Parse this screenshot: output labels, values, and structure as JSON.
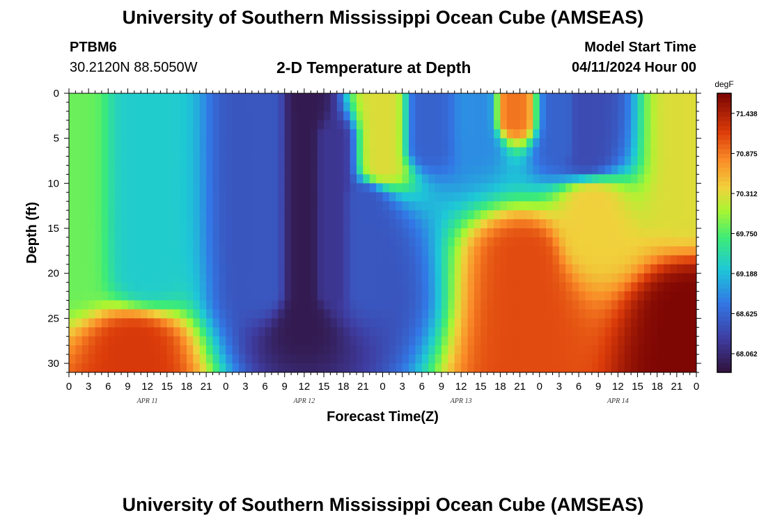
{
  "page": {
    "title_top": "University of Southern Mississippi Ocean Cube (AMSEAS)",
    "title_bottom": "University of Southern Mississippi Ocean Cube (AMSEAS)",
    "station_id": "PTBM6",
    "coordinates": "30.2120N  88.5050W",
    "chart_title": "2-D Temperature at Depth",
    "model_start_label": "Model Start Time",
    "model_start_value": "04/11/2024 Hour 00"
  },
  "chart_data": {
    "type": "heatmap",
    "title": "2-D Temperature at Depth",
    "xlabel": "Forecast Time(Z)",
    "ylabel": "Depth (ft)",
    "x_unit": "forecast hour",
    "x_range": [
      0,
      96
    ],
    "x_step": 1,
    "x_tick_labels": [
      "0",
      "3",
      "6",
      "9",
      "12",
      "15",
      "18",
      "21",
      "0",
      "3",
      "6",
      "9",
      "12",
      "15",
      "18",
      "21",
      "0",
      "3",
      "6",
      "9",
      "12",
      "15",
      "18",
      "21",
      "0",
      "3",
      "6",
      "9",
      "12",
      "15",
      "18",
      "21",
      "0"
    ],
    "day_labels": [
      {
        "text": "APR 11",
        "hour": 12
      },
      {
        "text": "APR 12",
        "hour": 36
      },
      {
        "text": "APR 13",
        "hour": 60
      },
      {
        "text": "APR 14",
        "hour": 84
      }
    ],
    "y_range": [
      0,
      31
    ],
    "y_step": 1,
    "y_ticks": [
      0,
      5,
      10,
      15,
      20,
      25,
      30
    ],
    "colorbar": {
      "unit": "degF",
      "min": 67.8,
      "max": 71.72,
      "tick_values": [
        71.438,
        70.875,
        70.312,
        69.75,
        69.188,
        68.625,
        68.062
      ]
    },
    "features": [
      {
        "hour": 0,
        "depth_top": 0,
        "depth_bottom": 20,
        "value": 69.85
      },
      {
        "hour": 12,
        "depth_top": 0,
        "depth_bottom": 20,
        "value": 69.3
      },
      {
        "hour": 30,
        "depth_top": 0,
        "depth_bottom": 22,
        "value": 68.5
      },
      {
        "hour": 36,
        "depth_top": 0,
        "depth_bottom": 26,
        "value": 67.9
      },
      {
        "hour": 40,
        "depth_top": 5,
        "depth_bottom": 22,
        "value": 68.2
      },
      {
        "hour": 45,
        "depth_top": 12,
        "depth_bottom": 22,
        "value": 68.5
      },
      {
        "hour": 48,
        "depth_top": 0,
        "depth_bottom": 8,
        "value": 70.3
      },
      {
        "hour": 55,
        "depth_top": 0,
        "depth_bottom": 6,
        "value": 68.6
      },
      {
        "hour": 63,
        "depth_top": 0,
        "depth_bottom": 6,
        "value": 68.9
      },
      {
        "hour": 68,
        "depth_top": 0,
        "depth_bottom": 3,
        "value": 70.9
      },
      {
        "hour": 75,
        "depth_top": 0,
        "depth_bottom": 6,
        "value": 68.6
      },
      {
        "hour": 79,
        "depth_top": 0,
        "depth_bottom": 7,
        "value": 68.4
      },
      {
        "hour": 80,
        "depth_top": 12,
        "depth_bottom": 16,
        "value": 70.4
      },
      {
        "hour": 95,
        "depth_top": 0,
        "depth_bottom": 12,
        "value": 70.3
      },
      {
        "hour": 70,
        "depth_top": 18,
        "depth_bottom": 31,
        "value": 71.1
      },
      {
        "hour": 95,
        "depth_top": 24,
        "depth_bottom": 31,
        "value": 71.7
      },
      {
        "hour": 10,
        "depth_top": 28,
        "depth_bottom": 31,
        "value": 71.2
      }
    ]
  }
}
